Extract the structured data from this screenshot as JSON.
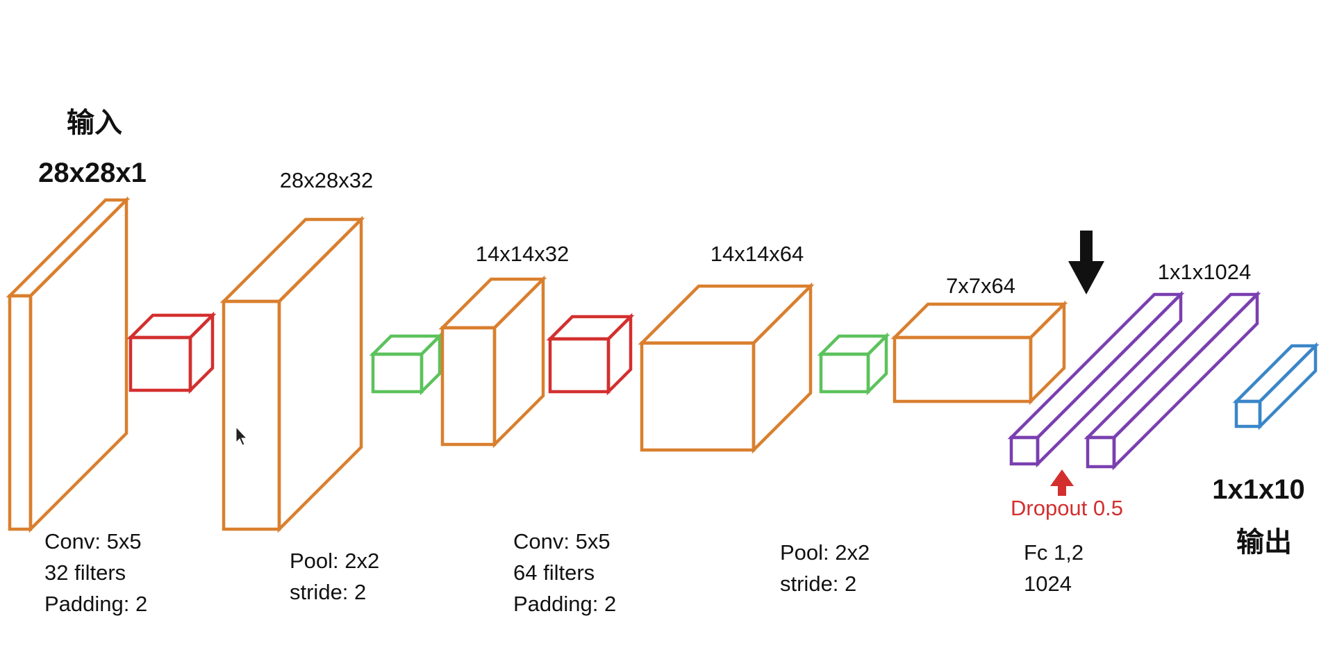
{
  "colors": {
    "conv_layer": "#d97f2e",
    "conv_kernel": "#d32f2f",
    "pool_kernel": "#5cc25c",
    "fc_layer": "#7a3fb0",
    "output_layer": "#3a86c8",
    "arrow_black": "#111111",
    "arrow_red": "#d32f2f"
  },
  "input": {
    "title": "输入",
    "size": "28x28x1",
    "caption": [
      "Conv: 5x5",
      "32 filters",
      "Padding: 2"
    ]
  },
  "layer1": {
    "size": "28x28x32",
    "caption": [
      "Pool: 2x2",
      "stride: 2"
    ]
  },
  "layer2": {
    "size": "14x14x32",
    "caption": [
      "Conv: 5x5",
      "64 filters",
      "Padding: 2"
    ]
  },
  "layer3": {
    "size": "14x14x64",
    "caption": [
      "Pool: 2x2",
      "stride: 2"
    ]
  },
  "layer4": {
    "size": "7x7x64",
    "caption": [
      "Fc 1,2",
      "1024"
    ]
  },
  "fc": {
    "size": "1x1x1024",
    "dropout": "Dropout 0.5"
  },
  "output": {
    "size": "1x1x10",
    "title": "输出"
  },
  "icons": {
    "flatten_arrow": "arrow-down-icon",
    "dropout_arrow": "arrow-up-icon"
  }
}
